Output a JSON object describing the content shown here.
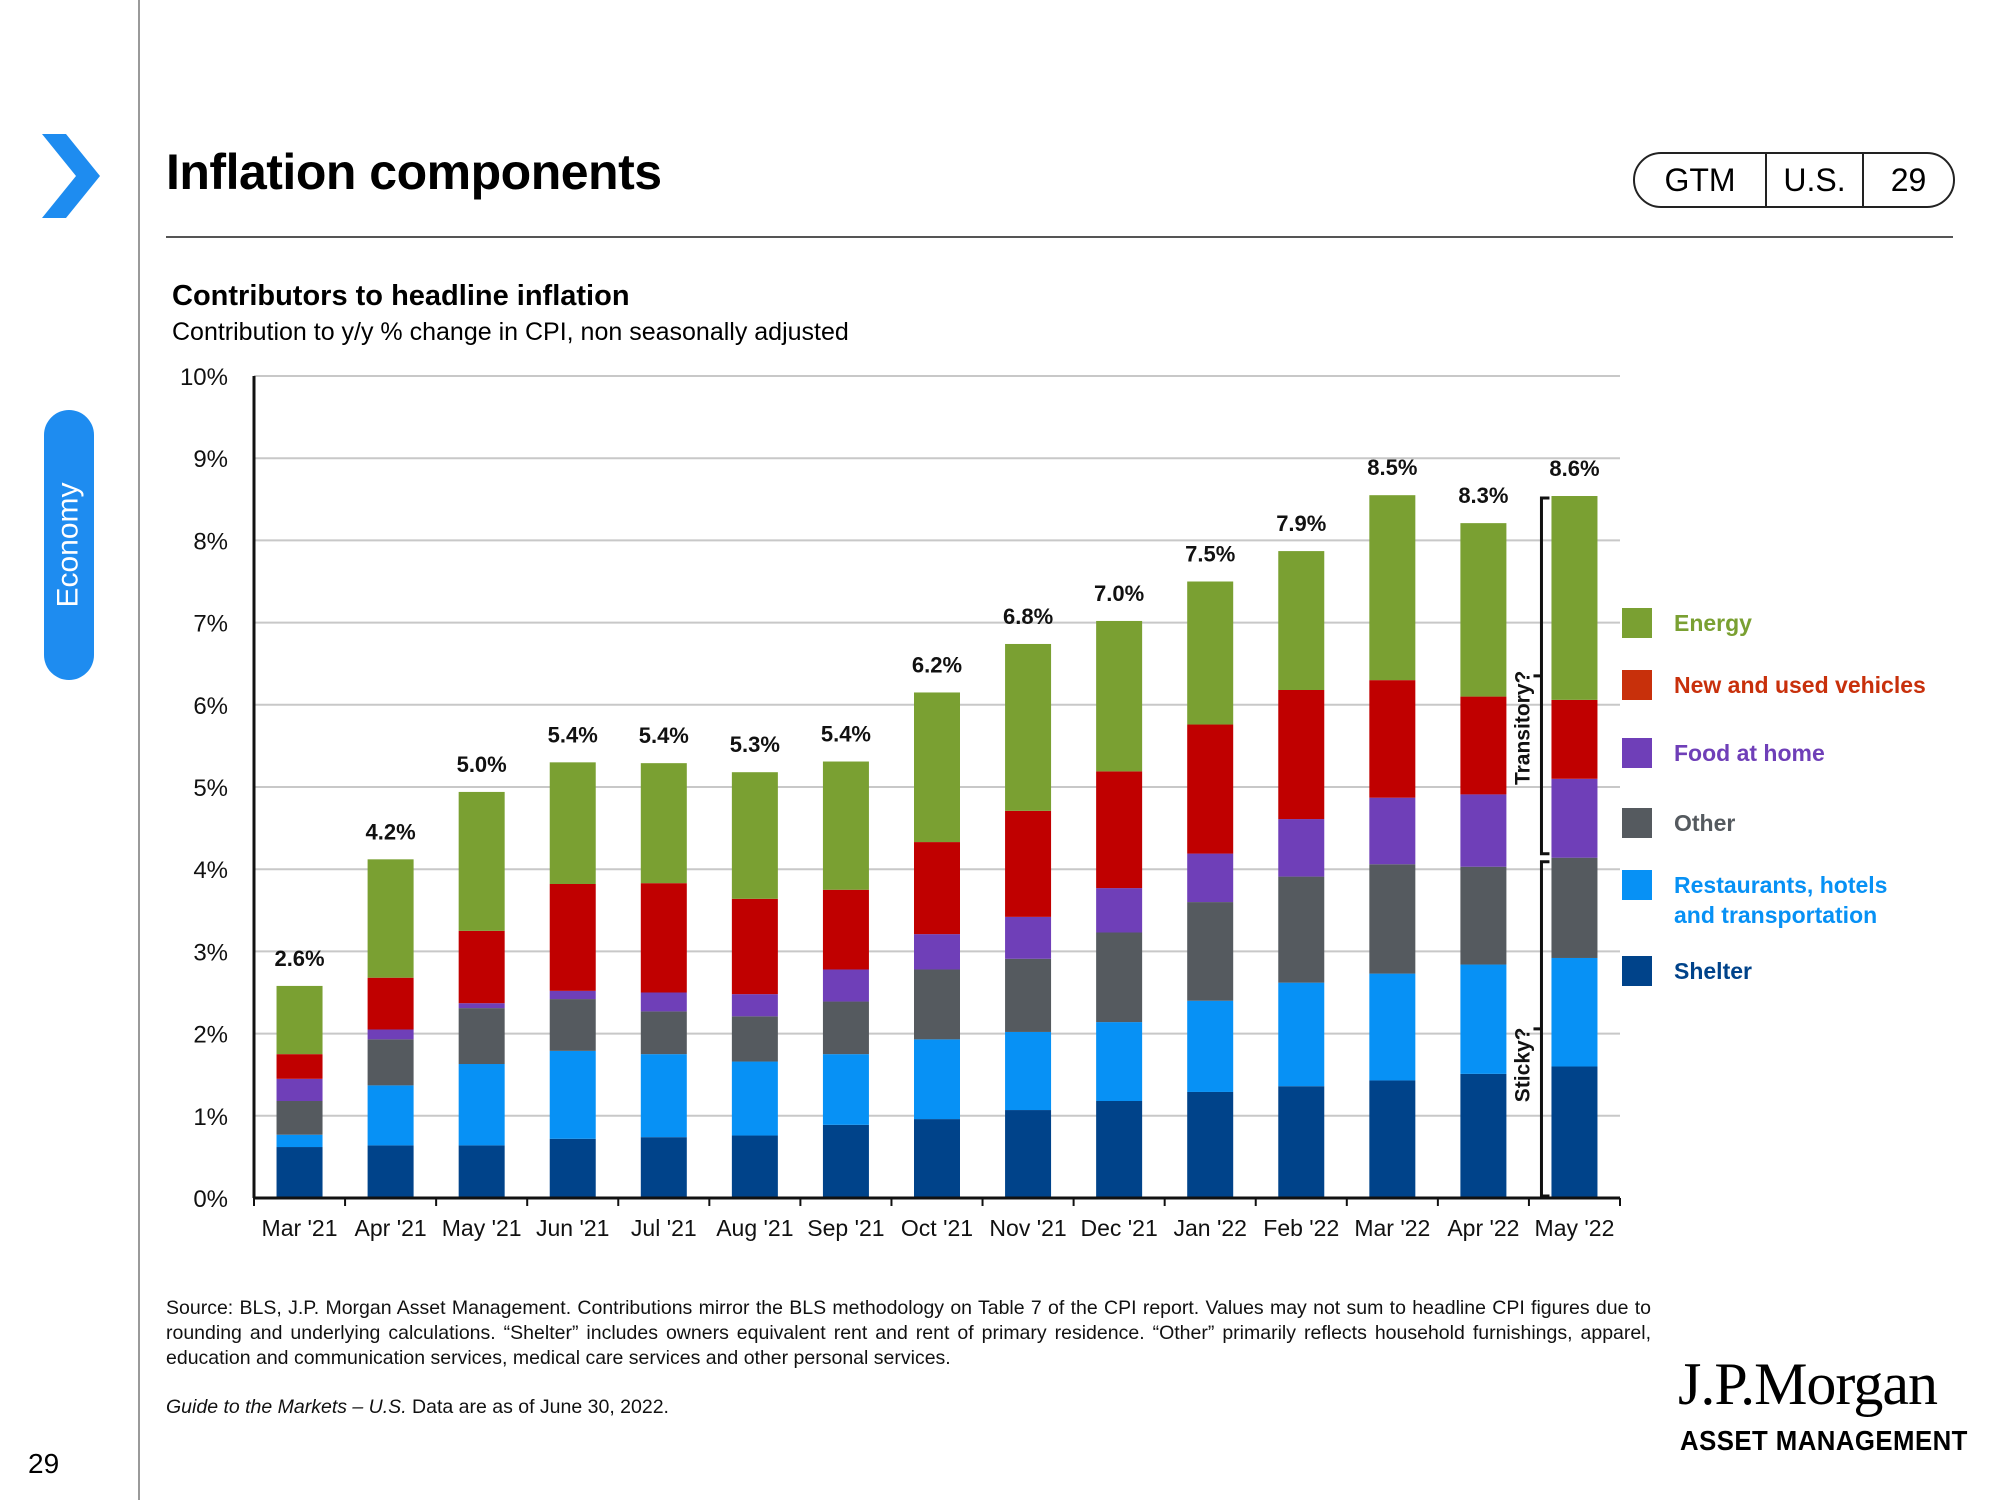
{
  "side": {
    "section": "Economy",
    "page_number": "29"
  },
  "header": {
    "title": "Inflation components",
    "tag": [
      "GTM",
      "U.S.",
      "29"
    ]
  },
  "chart": {
    "title": "Contributors to headline inflation",
    "subtitle": "Contribution to y/y % change in CPI, non seasonally adjusted"
  },
  "chart_data": {
    "type": "bar",
    "stacked": true,
    "categories": [
      "Mar '21",
      "Apr '21",
      "May '21",
      "Jun '21",
      "Jul '21",
      "Aug '21",
      "Sep '21",
      "Oct '21",
      "Nov '21",
      "Dec '21",
      "Jan '22",
      "Feb '22",
      "Mar '22",
      "Apr '22",
      "May '22"
    ],
    "ylim": [
      0,
      10
    ],
    "yticks": [
      "0%",
      "1%",
      "2%",
      "3%",
      "4%",
      "5%",
      "6%",
      "7%",
      "8%",
      "9%",
      "10%"
    ],
    "grid": true,
    "series": [
      {
        "name": "Shelter",
        "color": "#00438a",
        "values": [
          0.62,
          0.64,
          0.64,
          0.72,
          0.74,
          0.76,
          0.89,
          0.96,
          1.07,
          1.18,
          1.29,
          1.36,
          1.43,
          1.51,
          1.6
        ]
      },
      {
        "name": "Restaurants, hotels and transportation",
        "color": "#0791f5",
        "values": [
          0.15,
          0.73,
          0.99,
          1.07,
          1.01,
          0.9,
          0.86,
          0.97,
          0.95,
          0.96,
          1.11,
          1.26,
          1.3,
          1.33,
          1.32
        ]
      },
      {
        "name": "Other",
        "color": "#555a5f",
        "values": [
          0.41,
          0.56,
          0.68,
          0.63,
          0.52,
          0.55,
          0.64,
          0.85,
          0.89,
          1.09,
          1.2,
          1.29,
          1.33,
          1.19,
          1.22
        ]
      },
      {
        "name": "Food  at home",
        "color": "#6f3fb8",
        "values": [
          0.27,
          0.12,
          0.06,
          0.1,
          0.23,
          0.27,
          0.39,
          0.43,
          0.51,
          0.54,
          0.59,
          0.7,
          0.81,
          0.88,
          0.96
        ]
      },
      {
        "name": "New and used vehicles",
        "color": "#c00000",
        "values": [
          0.3,
          0.63,
          0.88,
          1.3,
          1.33,
          1.16,
          0.97,
          1.12,
          1.29,
          1.42,
          1.57,
          1.57,
          1.43,
          1.19,
          0.96
        ]
      },
      {
        "name": "Energy",
        "color": "#7aa032",
        "values": [
          0.83,
          1.44,
          1.69,
          1.48,
          1.46,
          1.54,
          1.56,
          1.82,
          2.03,
          1.83,
          1.74,
          1.69,
          2.25,
          2.11,
          2.48
        ]
      }
    ],
    "totals": [
      "2.6%",
      "4.2%",
      "5.0%",
      "5.4%",
      "5.4%",
      "5.3%",
      "5.4%",
      "6.2%",
      "6.8%",
      "7.0%",
      "7.5%",
      "7.9%",
      "8.5%",
      "8.3%",
      "8.6%"
    ],
    "annotations": {
      "upper_bracket": "Transitory?",
      "lower_bracket": "Sticky?"
    },
    "legend_placement": "right"
  },
  "legend": [
    {
      "label": "Energy",
      "color": "#7aa032",
      "text_color": "#7aa032"
    },
    {
      "label": "New and used vehicles",
      "color": "#c8300b",
      "text_color": "#c8300b"
    },
    {
      "label": "Food  at home",
      "color": "#6f3fb8",
      "text_color": "#6f3fb8"
    },
    {
      "label": "Other",
      "color": "#555a5f",
      "text_color": "#555a5f"
    },
    {
      "label": "Restaurants, hotels\nand transportation",
      "color": "#0791f5",
      "text_color": "#0791f5"
    },
    {
      "label": "Shelter",
      "color": "#00438a",
      "text_color": "#00438a"
    }
  ],
  "footer": {
    "source": "Source: BLS, J.P. Morgan Asset Management. Contributions mirror the BLS methodology on Table 7 of the CPI report. Values may not sum to headline CPI figures due to rounding and underlying calculations. “Shelter” includes owners equivalent rent and rent of primary residence. “Other” primarily reflects household furnishings, apparel, education and communication services, medical care services and other personal services.",
    "guide_italic": "Guide to the Markets – U.S.",
    "guide_rest": " Data are as of June 30, 2022.",
    "logo_top": "J.P.Morgan",
    "logo_bottom": "ASSET MANAGEMENT"
  }
}
